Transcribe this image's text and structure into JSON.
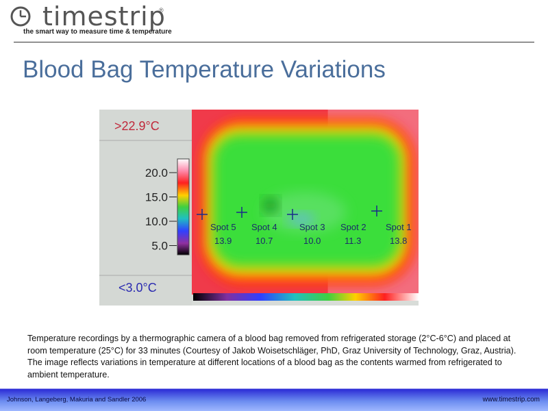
{
  "header": {
    "logo": "timestrip",
    "registered": "®",
    "tagline": "the smart way to measure time & temperature"
  },
  "title": "Blood Bag Temperature Variations",
  "thermogram": {
    "max_label": ">22.9°C",
    "min_label": "<3.0°C",
    "scale_ticks": [
      "20.0",
      "15.0",
      "10.0",
      "5.0"
    ],
    "spots": [
      {
        "label": "Spot 5",
        "value": "13.9"
      },
      {
        "label": "Spot 4",
        "value": "10.7"
      },
      {
        "label": "Spot 3",
        "value": "10.0"
      },
      {
        "label": "Spot 2",
        "value": "11.3"
      },
      {
        "label": "Spot 1",
        "value": "13.8"
      }
    ]
  },
  "caption": "Temperature recordings by a thermographic camera of a blood bag removed from refrigerated storage (2°C-6°C) and placed at room temperature (25°C) for 33 minutes (Courtesy of Jakob Woisetschläger, PhD, Graz University of Technology, Graz, Austria). The image reflects variations in temperature at different locations of a blood bag as the contents warmed from refrigerated to ambient temperature.",
  "footer": {
    "citation": "Johnson, Langeberg, Makuria and Sandler 2006",
    "url": "www.timestrip.com"
  }
}
